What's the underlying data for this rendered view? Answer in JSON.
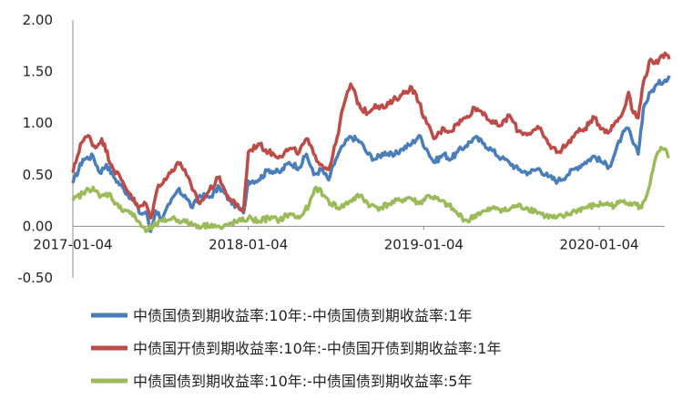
{
  "chart_data": {
    "type": "line",
    "title": "",
    "xlabel": "",
    "ylabel": "",
    "ylim": [
      -0.5,
      2.0
    ],
    "yticks": [
      "2.00",
      "1.50",
      "1.00",
      "0.50",
      "0.00",
      "-0.50"
    ],
    "xticks": [
      "2017-01-04",
      "2018-01-04",
      "2019-01-04",
      "2020-01-04"
    ],
    "xlim": [
      "2017-01-04",
      "2020-05-29"
    ],
    "grid": false,
    "legend_position": "bottom",
    "series": [
      {
        "name": "中债国债到期收益率:10年:-中债国债到期收益率:1年",
        "color": "#4a7ebb",
        "points": [
          [
            "2017-01-04",
            0.42
          ],
          [
            "2017-01-25",
            0.65
          ],
          [
            "2017-02-15",
            0.68
          ],
          [
            "2017-03-01",
            0.52
          ],
          [
            "2017-03-15",
            0.6
          ],
          [
            "2017-03-30",
            0.48
          ],
          [
            "2017-04-20",
            0.36
          ],
          [
            "2017-05-10",
            0.25
          ],
          [
            "2017-05-25",
            0.12
          ],
          [
            "2017-06-05",
            0.14
          ],
          [
            "2017-06-15",
            -0.05
          ],
          [
            "2017-06-25",
            0.15
          ],
          [
            "2017-07-10",
            0.08
          ],
          [
            "2017-07-25",
            0.22
          ],
          [
            "2017-08-10",
            0.35
          ],
          [
            "2017-08-25",
            0.3
          ],
          [
            "2017-09-10",
            0.18
          ],
          [
            "2017-09-25",
            0.3
          ],
          [
            "2017-10-15",
            0.28
          ],
          [
            "2017-11-05",
            0.38
          ],
          [
            "2017-11-25",
            0.26
          ],
          [
            "2017-12-10",
            0.2
          ],
          [
            "2017-12-25",
            0.13
          ],
          [
            "2018-01-04",
            0.44
          ],
          [
            "2018-01-25",
            0.45
          ],
          [
            "2018-02-15",
            0.55
          ],
          [
            "2018-03-10",
            0.52
          ],
          [
            "2018-03-30",
            0.62
          ],
          [
            "2018-04-20",
            0.57
          ],
          [
            "2018-05-05",
            0.7
          ],
          [
            "2018-05-20",
            0.5
          ],
          [
            "2018-06-05",
            0.55
          ],
          [
            "2018-06-20",
            0.45
          ],
          [
            "2018-07-05",
            0.65
          ],
          [
            "2018-07-20",
            0.78
          ],
          [
            "2018-08-05",
            0.87
          ],
          [
            "2018-08-25",
            0.82
          ],
          [
            "2018-09-10",
            0.7
          ],
          [
            "2018-09-25",
            0.65
          ],
          [
            "2018-10-15",
            0.72
          ],
          [
            "2018-11-01",
            0.68
          ],
          [
            "2018-11-20",
            0.75
          ],
          [
            "2018-12-10",
            0.8
          ],
          [
            "2018-12-25",
            0.88
          ],
          [
            "2019-01-10",
            0.75
          ],
          [
            "2019-01-25",
            0.62
          ],
          [
            "2019-02-15",
            0.7
          ],
          [
            "2019-03-01",
            0.65
          ],
          [
            "2019-03-15",
            0.72
          ],
          [
            "2019-04-01",
            0.78
          ],
          [
            "2019-04-20",
            0.86
          ],
          [
            "2019-05-10",
            0.8
          ],
          [
            "2019-05-25",
            0.74
          ],
          [
            "2019-06-15",
            0.66
          ],
          [
            "2019-07-01",
            0.62
          ],
          [
            "2019-07-20",
            0.55
          ],
          [
            "2019-08-10",
            0.52
          ],
          [
            "2019-09-01",
            0.56
          ],
          [
            "2019-09-20",
            0.48
          ],
          [
            "2019-10-10",
            0.44
          ],
          [
            "2019-10-30",
            0.5
          ],
          [
            "2019-11-15",
            0.56
          ],
          [
            "2019-12-05",
            0.62
          ],
          [
            "2019-12-25",
            0.68
          ],
          [
            "2020-01-10",
            0.62
          ],
          [
            "2020-01-25",
            0.58
          ],
          [
            "2020-02-05",
            0.7
          ],
          [
            "2020-02-20",
            0.88
          ],
          [
            "2020-03-05",
            0.95
          ],
          [
            "2020-03-15",
            0.8
          ],
          [
            "2020-03-25",
            0.7
          ],
          [
            "2020-04-05",
            1.15
          ],
          [
            "2020-04-20",
            1.3
          ],
          [
            "2020-05-05",
            1.38
          ],
          [
            "2020-05-20",
            1.42
          ],
          [
            "2020-05-29",
            1.46
          ]
        ]
      },
      {
        "name": "中债国开债到期收益率:10年:-中债国开债到期收益率:1年",
        "color": "#be4b48",
        "points": [
          [
            "2017-01-04",
            0.52
          ],
          [
            "2017-01-20",
            0.8
          ],
          [
            "2017-02-05",
            0.88
          ],
          [
            "2017-02-20",
            0.76
          ],
          [
            "2017-03-05",
            0.85
          ],
          [
            "2017-03-25",
            0.6
          ],
          [
            "2017-04-15",
            0.45
          ],
          [
            "2017-05-05",
            0.3
          ],
          [
            "2017-05-20",
            0.18
          ],
          [
            "2017-06-05",
            0.22
          ],
          [
            "2017-06-15",
            0.08
          ],
          [
            "2017-07-01",
            0.4
          ],
          [
            "2017-07-20",
            0.48
          ],
          [
            "2017-08-10",
            0.62
          ],
          [
            "2017-08-25",
            0.55
          ],
          [
            "2017-09-10",
            0.35
          ],
          [
            "2017-09-25",
            0.22
          ],
          [
            "2017-10-15",
            0.35
          ],
          [
            "2017-11-05",
            0.48
          ],
          [
            "2017-11-20",
            0.3
          ],
          [
            "2017-12-10",
            0.2
          ],
          [
            "2017-12-25",
            0.15
          ],
          [
            "2018-01-04",
            0.72
          ],
          [
            "2018-01-25",
            0.8
          ],
          [
            "2018-02-15",
            0.72
          ],
          [
            "2018-03-10",
            0.68
          ],
          [
            "2018-03-30",
            0.75
          ],
          [
            "2018-04-20",
            0.72
          ],
          [
            "2018-05-05",
            0.85
          ],
          [
            "2018-05-20",
            0.7
          ],
          [
            "2018-06-05",
            0.6
          ],
          [
            "2018-06-20",
            0.55
          ],
          [
            "2018-07-05",
            0.8
          ],
          [
            "2018-07-20",
            1.15
          ],
          [
            "2018-08-05",
            1.38
          ],
          [
            "2018-08-25",
            1.15
          ],
          [
            "2018-09-10",
            1.1
          ],
          [
            "2018-09-25",
            1.18
          ],
          [
            "2018-10-15",
            1.15
          ],
          [
            "2018-11-01",
            1.22
          ],
          [
            "2018-11-20",
            1.28
          ],
          [
            "2018-12-10",
            1.35
          ],
          [
            "2018-12-25",
            1.2
          ],
          [
            "2019-01-10",
            1.0
          ],
          [
            "2019-01-25",
            0.85
          ],
          [
            "2019-02-15",
            0.95
          ],
          [
            "2019-03-01",
            0.92
          ],
          [
            "2019-03-15",
            1.0
          ],
          [
            "2019-04-01",
            1.05
          ],
          [
            "2019-04-20",
            1.15
          ],
          [
            "2019-05-10",
            1.1
          ],
          [
            "2019-05-25",
            1.0
          ],
          [
            "2019-06-15",
            0.98
          ],
          [
            "2019-07-01",
            1.08
          ],
          [
            "2019-07-20",
            0.92
          ],
          [
            "2019-08-10",
            0.9
          ],
          [
            "2019-09-01",
            0.95
          ],
          [
            "2019-09-20",
            0.8
          ],
          [
            "2019-10-10",
            0.72
          ],
          [
            "2019-10-30",
            0.8
          ],
          [
            "2019-11-15",
            0.9
          ],
          [
            "2019-12-05",
            0.95
          ],
          [
            "2019-12-25",
            1.05
          ],
          [
            "2020-01-10",
            0.95
          ],
          [
            "2020-01-25",
            0.92
          ],
          [
            "2020-02-05",
            1.0
          ],
          [
            "2020-02-20",
            1.08
          ],
          [
            "2020-03-05",
            1.3
          ],
          [
            "2020-03-15",
            1.1
          ],
          [
            "2020-03-25",
            1.05
          ],
          [
            "2020-04-05",
            1.4
          ],
          [
            "2020-04-20",
            1.62
          ],
          [
            "2020-05-05",
            1.58
          ],
          [
            "2020-05-20",
            1.68
          ],
          [
            "2020-05-29",
            1.62
          ]
        ]
      },
      {
        "name": "中债国债到期收益率:10年:-中债国债到期收益率:5年",
        "color": "#9bbb59",
        "points": [
          [
            "2017-01-04",
            0.25
          ],
          [
            "2017-01-25",
            0.32
          ],
          [
            "2017-02-15",
            0.38
          ],
          [
            "2017-03-01",
            0.28
          ],
          [
            "2017-03-20",
            0.32
          ],
          [
            "2017-04-10",
            0.18
          ],
          [
            "2017-04-30",
            0.15
          ],
          [
            "2017-05-20",
            0.05
          ],
          [
            "2017-06-05",
            -0.05
          ],
          [
            "2017-06-20",
            0.0
          ],
          [
            "2017-07-10",
            0.05
          ],
          [
            "2017-07-30",
            0.08
          ],
          [
            "2017-08-20",
            0.05
          ],
          [
            "2017-09-10",
            0.02
          ],
          [
            "2017-10-01",
            0.0
          ],
          [
            "2017-10-20",
            0.02
          ],
          [
            "2017-11-10",
            -0.02
          ],
          [
            "2017-11-30",
            0.03
          ],
          [
            "2017-12-20",
            0.05
          ],
          [
            "2018-01-04",
            0.08
          ],
          [
            "2018-01-25",
            0.05
          ],
          [
            "2018-02-15",
            0.08
          ],
          [
            "2018-03-10",
            0.06
          ],
          [
            "2018-03-30",
            0.12
          ],
          [
            "2018-04-20",
            0.08
          ],
          [
            "2018-05-10",
            0.2
          ],
          [
            "2018-05-25",
            0.38
          ],
          [
            "2018-06-10",
            0.3
          ],
          [
            "2018-06-25",
            0.22
          ],
          [
            "2018-07-15",
            0.18
          ],
          [
            "2018-08-05",
            0.25
          ],
          [
            "2018-08-25",
            0.3
          ],
          [
            "2018-09-15",
            0.2
          ],
          [
            "2018-10-05",
            0.18
          ],
          [
            "2018-10-25",
            0.22
          ],
          [
            "2018-11-15",
            0.25
          ],
          [
            "2018-12-05",
            0.28
          ],
          [
            "2018-12-25",
            0.22
          ],
          [
            "2019-01-15",
            0.3
          ],
          [
            "2019-02-05",
            0.25
          ],
          [
            "2019-02-25",
            0.2
          ],
          [
            "2019-03-15",
            0.12
          ],
          [
            "2019-04-05",
            0.05
          ],
          [
            "2019-04-25",
            0.12
          ],
          [
            "2019-05-15",
            0.15
          ],
          [
            "2019-06-05",
            0.18
          ],
          [
            "2019-06-25",
            0.15
          ],
          [
            "2019-07-15",
            0.2
          ],
          [
            "2019-08-05",
            0.18
          ],
          [
            "2019-08-25",
            0.15
          ],
          [
            "2019-09-15",
            0.1
          ],
          [
            "2019-10-05",
            0.08
          ],
          [
            "2019-10-25",
            0.1
          ],
          [
            "2019-11-15",
            0.15
          ],
          [
            "2019-12-05",
            0.18
          ],
          [
            "2019-12-25",
            0.2
          ],
          [
            "2020-01-15",
            0.22
          ],
          [
            "2020-02-05",
            0.2
          ],
          [
            "2020-02-25",
            0.25
          ],
          [
            "2020-03-15",
            0.22
          ],
          [
            "2020-04-01",
            0.18
          ],
          [
            "2020-04-15",
            0.35
          ],
          [
            "2020-04-25",
            0.55
          ],
          [
            "2020-05-05",
            0.72
          ],
          [
            "2020-05-15",
            0.75
          ],
          [
            "2020-05-29",
            0.68
          ]
        ]
      }
    ]
  }
}
